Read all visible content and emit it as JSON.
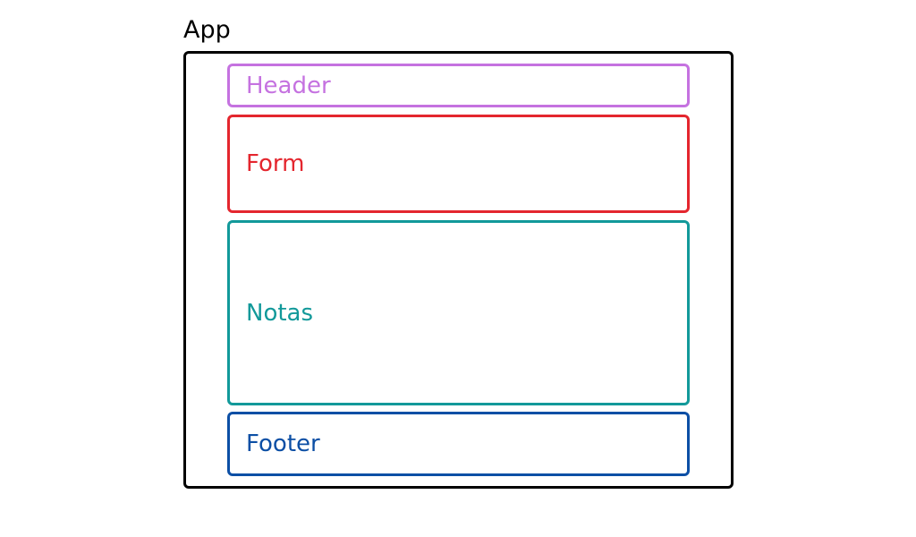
{
  "app": {
    "title": "App",
    "color": "#000000"
  },
  "components": {
    "header": {
      "label": "Header",
      "color": "#c572e0"
    },
    "form": {
      "label": "Form",
      "color": "#e4262e"
    },
    "notas": {
      "label": "Notas",
      "color": "#12999a"
    },
    "footer": {
      "label": "Footer",
      "color": "#0c4fa5"
    }
  }
}
